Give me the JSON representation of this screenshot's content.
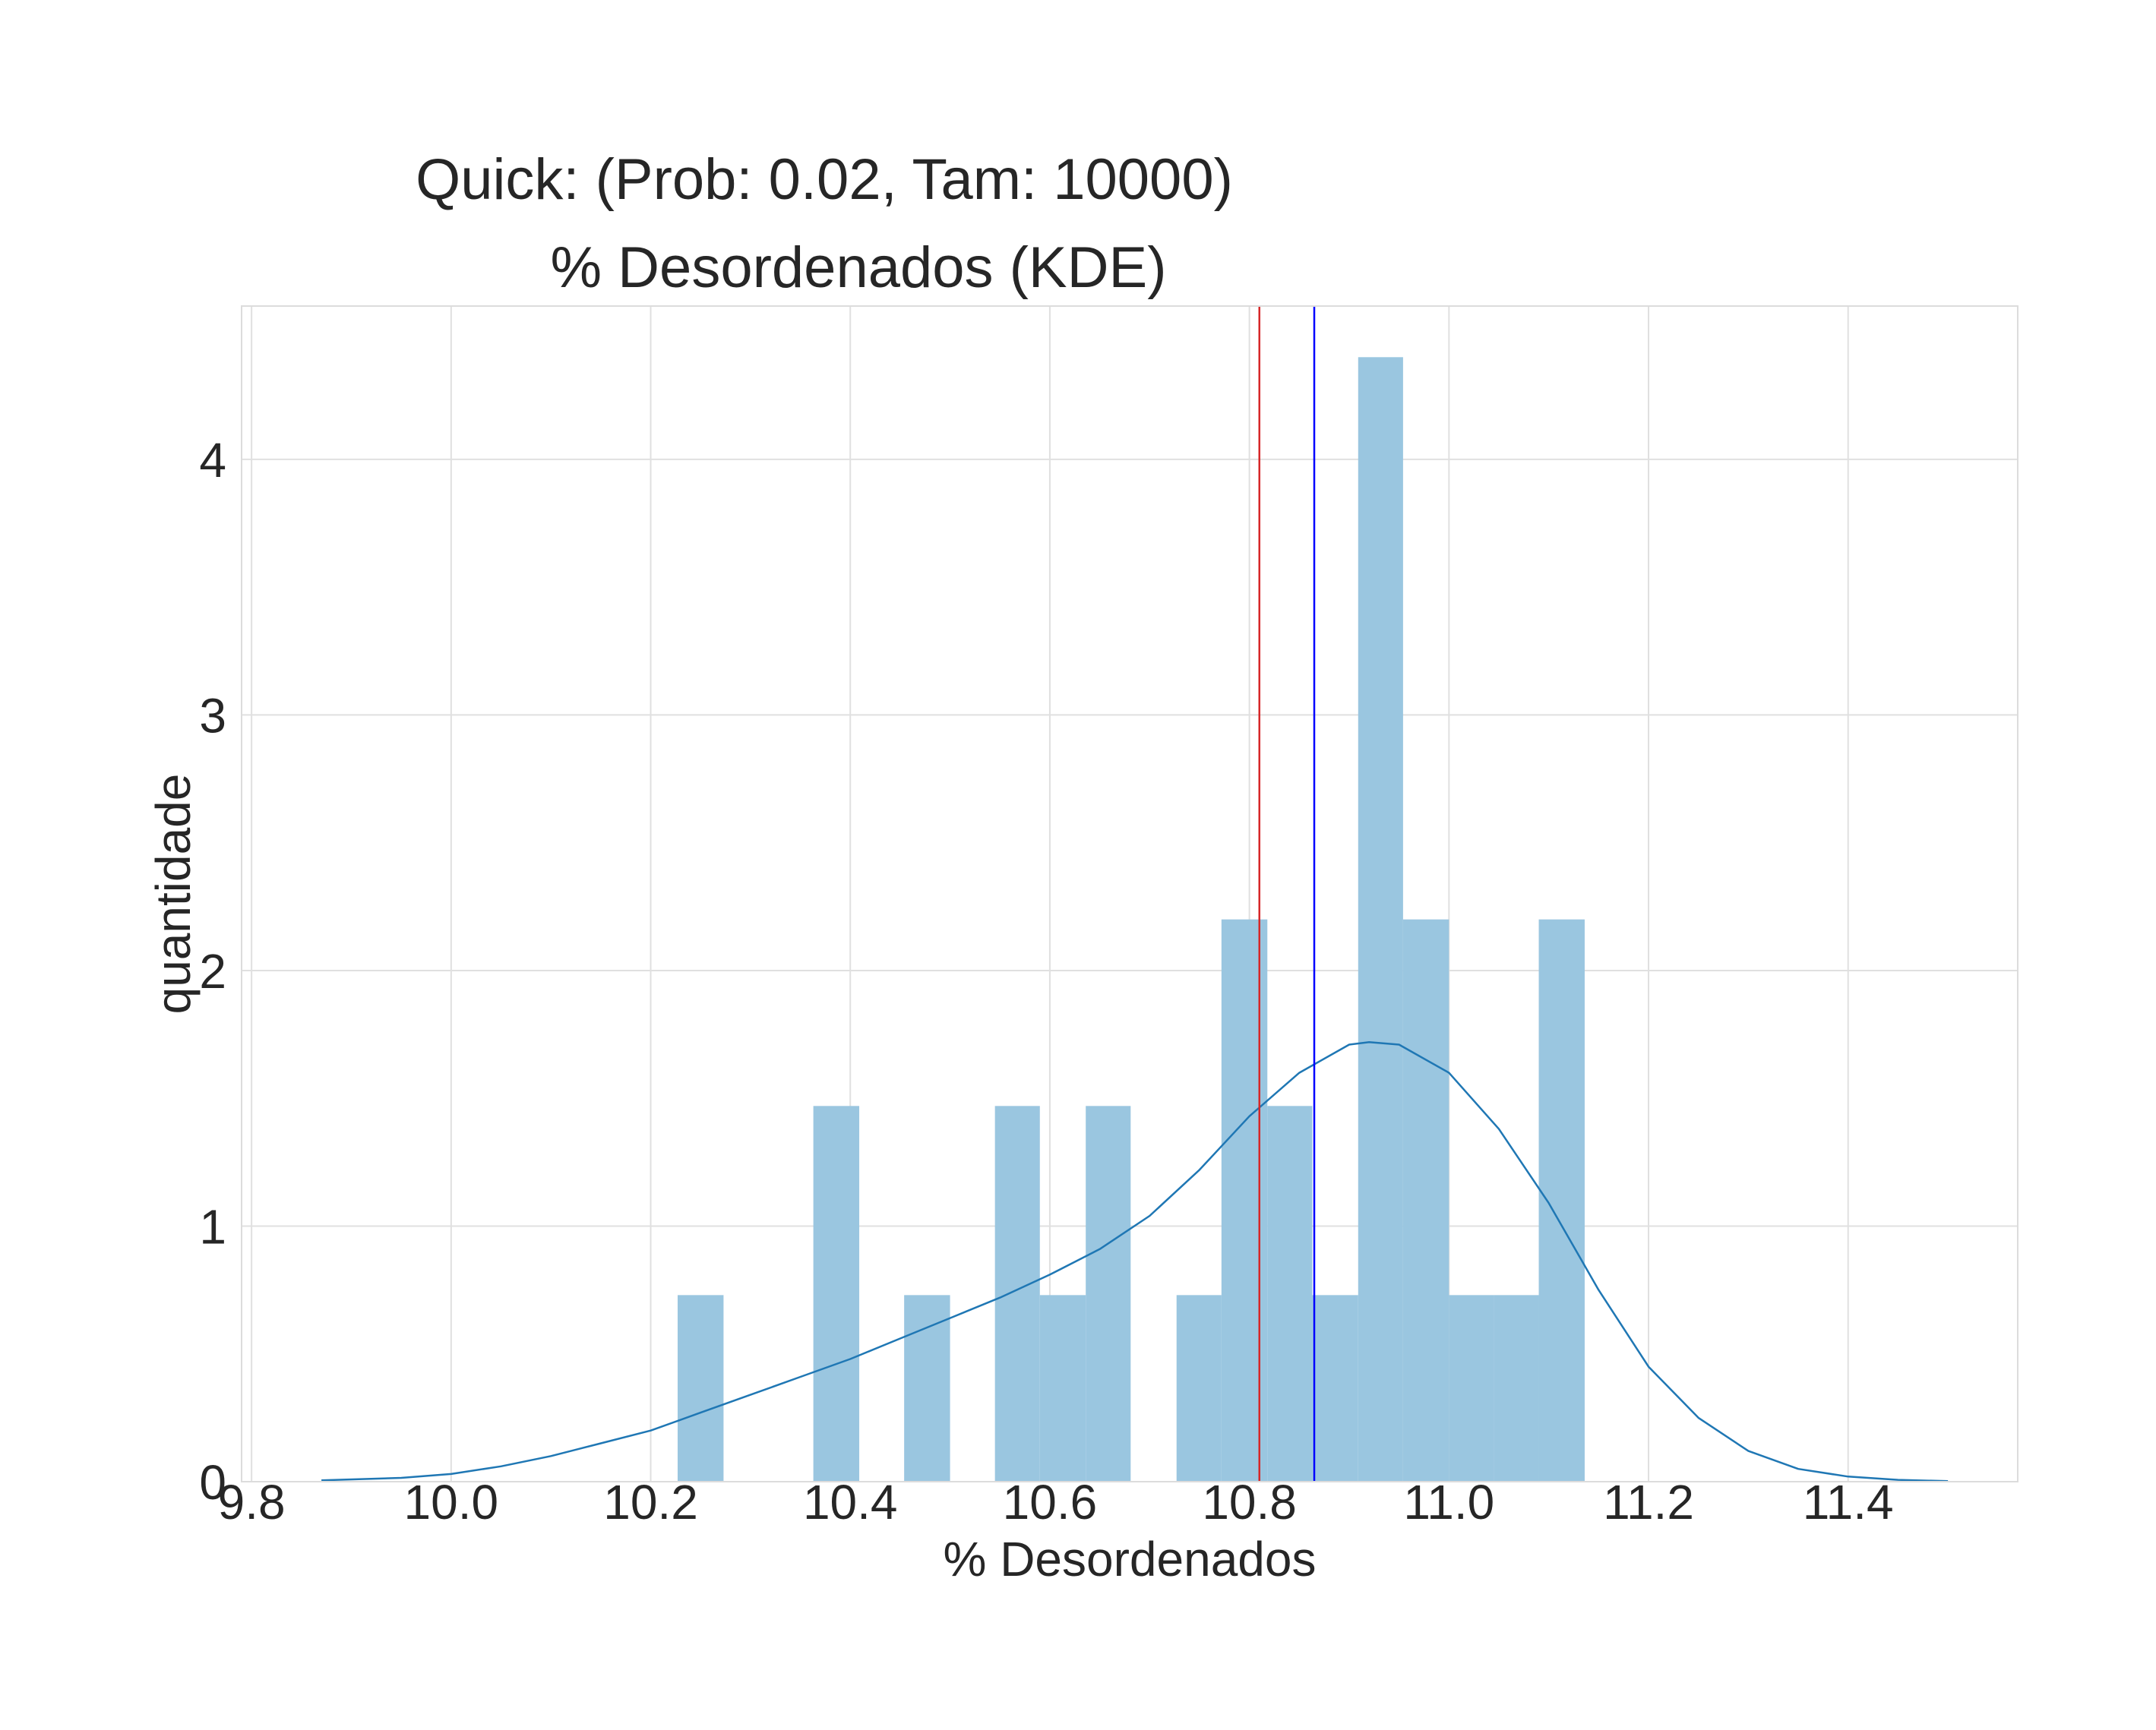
{
  "chart_data": {
    "type": "bar",
    "title_line1": "Quick: (Prob: 0.02, Tam: 10000)",
    "title_line2": "% Desordenados (KDE)",
    "xlabel": "% Desordenados",
    "ylabel": "quantidade",
    "xlim": [
      9.79,
      11.57
    ],
    "ylim": [
      0,
      4.6
    ],
    "xticks": [
      9.8,
      10.0,
      10.2,
      10.4,
      10.6,
      10.8,
      11.0,
      11.2,
      11.4
    ],
    "xtick_labels": [
      "9.8",
      "10.0",
      "10.2",
      "10.4",
      "10.6",
      "10.8",
      "11.0",
      "11.2",
      "11.4"
    ],
    "yticks": [
      0,
      1,
      2,
      3,
      4
    ],
    "ytick_labels": [
      "0",
      "1",
      "2",
      "3",
      "4"
    ],
    "grid": true,
    "histogram": {
      "bin_edges": [
        10.227,
        10.273,
        10.318,
        10.363,
        10.409,
        10.454,
        10.5,
        10.545,
        10.59,
        10.636,
        10.681,
        10.727,
        10.772,
        10.818,
        10.863,
        10.909,
        10.954,
        11.0,
        11.045,
        11.09,
        11.136
      ],
      "values": [
        0.73,
        0,
        0,
        1.47,
        0,
        0.73,
        0,
        1.47,
        0.73,
        1.47,
        0,
        0.73,
        2.2,
        1.47,
        0.73,
        4.4,
        2.2,
        0.73,
        0.73,
        2.2
      ],
      "color": "#9ac6e0"
    },
    "kde": {
      "x": [
        9.87,
        9.95,
        10.0,
        10.05,
        10.1,
        10.15,
        10.2,
        10.25,
        10.3,
        10.35,
        10.4,
        10.45,
        10.5,
        10.55,
        10.6,
        10.65,
        10.7,
        10.75,
        10.8,
        10.85,
        10.9,
        10.92,
        10.95,
        11.0,
        11.05,
        11.1,
        11.15,
        11.2,
        11.25,
        11.3,
        11.35,
        11.4,
        11.45,
        11.5
      ],
      "y": [
        0.005,
        0.015,
        0.03,
        0.06,
        0.1,
        0.15,
        0.2,
        0.27,
        0.34,
        0.41,
        0.48,
        0.56,
        0.64,
        0.72,
        0.81,
        0.91,
        1.04,
        1.22,
        1.43,
        1.6,
        1.71,
        1.72,
        1.71,
        1.6,
        1.38,
        1.09,
        0.75,
        0.45,
        0.25,
        0.12,
        0.05,
        0.02,
        0.007,
        0.002
      ],
      "color": "#1f77b4"
    },
    "vlines": [
      {
        "x": 10.81,
        "color": "#d62728"
      },
      {
        "x": 10.865,
        "color": "#0000ff"
      }
    ]
  }
}
